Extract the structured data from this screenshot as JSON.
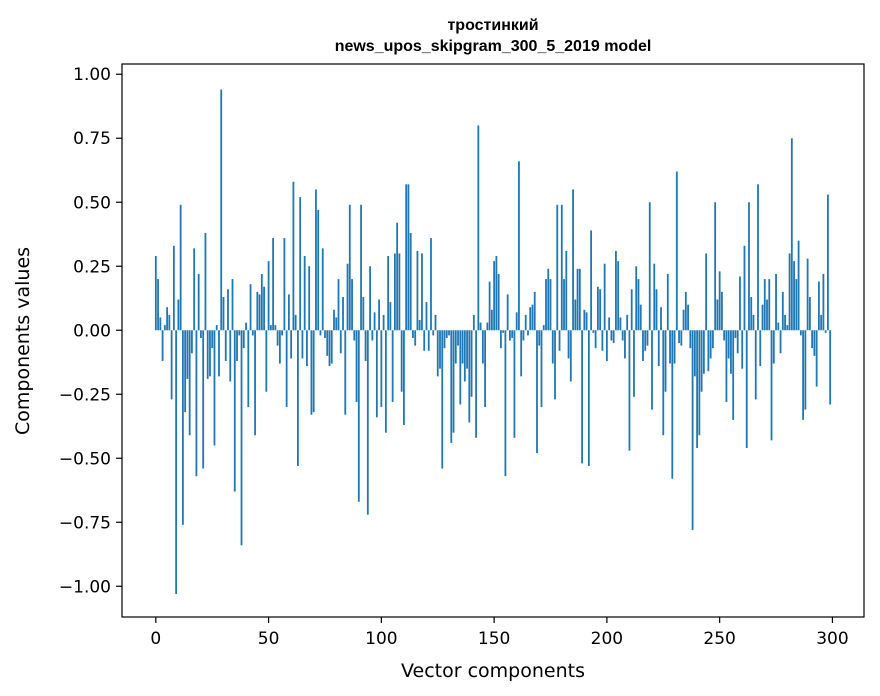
{
  "chart_data": {
    "type": "bar",
    "title": [
      "тростинкий",
      "news_upos_skipgram_300_5_2019 model"
    ],
    "xlabel": "Vector components",
    "ylabel": "Components values",
    "xlim": [
      -15,
      314
    ],
    "ylim": [
      -1.12,
      1.04
    ],
    "xticks": [
      0,
      50,
      100,
      150,
      200,
      250,
      300
    ],
    "xtick_labels": [
      "0",
      "50",
      "100",
      "150",
      "200",
      "250",
      "300"
    ],
    "yticks": [
      -1.0,
      -0.75,
      -0.5,
      -0.25,
      0.0,
      0.25,
      0.5,
      0.75,
      1.0
    ],
    "ytick_labels": [
      "−1.00",
      "−0.75",
      "−0.50",
      "−0.25",
      "0.00",
      "0.25",
      "0.50",
      "0.75",
      "1.00"
    ],
    "grid": false,
    "bar_color": "#1f77b4",
    "x": "component index 0..299",
    "values": [
      0.29,
      0.2,
      0.05,
      -0.12,
      0.02,
      0.09,
      0.06,
      -0.27,
      0.33,
      -1.03,
      0.12,
      0.49,
      -0.76,
      -0.32,
      -0.19,
      -0.41,
      -0.09,
      0.32,
      -0.57,
      0.22,
      -0.03,
      -0.54,
      0.38,
      -0.19,
      -0.18,
      -0.07,
      -0.45,
      0.02,
      -0.18,
      0.94,
      0.13,
      -0.12,
      0.16,
      -0.2,
      0.2,
      -0.63,
      -0.12,
      -0.02,
      -0.84,
      -0.07,
      0.03,
      -0.3,
      0.18,
      -0.02,
      -0.41,
      0.15,
      0.14,
      0.22,
      0.17,
      -0.24,
      0.27,
      0.02,
      0.36,
      0.02,
      -0.06,
      -0.13,
      -0.02,
      0.36,
      -0.3,
      0.14,
      -0.11,
      0.58,
      0.06,
      -0.53,
      0.52,
      -0.11,
      0.29,
      -0.14,
      0.25,
      -0.33,
      -0.32,
      0.55,
      0.47,
      -0.02,
      0.32,
      -0.03,
      -0.1,
      -0.14,
      -0.13,
      0.08,
      0.05,
      0.2,
      -0.09,
      0.13,
      -0.33,
      0.26,
      0.49,
      0.2,
      -0.04,
      -0.28,
      -0.67,
      0.49,
      0.13,
      -0.12,
      -0.72,
      0.25,
      -0.04,
      0.07,
      -0.34,
      0.12,
      -0.3,
      0.06,
      -0.4,
      0.29,
      0.11,
      -0.28,
      0.3,
      0.42,
      0.3,
      -0.24,
      -0.37,
      0.57,
      0.57,
      0.38,
      -0.03,
      -0.06,
      0.31,
      0.04,
      0.3,
      -0.08,
      0.11,
      -0.08,
      0.36,
      -0.02,
      0.06,
      -0.18,
      -0.15,
      -0.54,
      -0.07,
      -0.03,
      -0.02,
      -0.44,
      -0.4,
      -0.13,
      -0.06,
      -0.29,
      -0.13,
      -0.2,
      -0.15,
      -0.36,
      -0.26,
      0.06,
      -0.42,
      0.8,
      0.03,
      -0.13,
      -0.3,
      0.03,
      0.19,
      0.08,
      0.27,
      0.29,
      0.22,
      -0.07,
      -0.01,
      -0.57,
      0.14,
      -0.04,
      -0.03,
      -0.42,
      0.07,
      0.66,
      -0.18,
      -0.04,
      0.06,
      -0.02,
      0.09,
      0.1,
      0.15,
      -0.48,
      -0.06,
      -0.3,
      0.02,
      0.2,
      0.24,
      0.2,
      -0.13,
      -0.27,
      0.49,
      -0.08,
      0.49,
      0.2,
      0.31,
      -0.11,
      -0.2,
      0.55,
      0.12,
      0.24,
      0.24,
      -0.52,
      0.08,
      0.07,
      -0.53,
      0.39,
      -0.01,
      -0.07,
      0.17,
      0.16,
      -0.08,
      0.26,
      -0.12,
      0.05,
      -0.04,
      -0.05,
      0.31,
      0.27,
      0.05,
      -0.04,
      -0.11,
      0.06,
      -0.47,
      0.16,
      -0.26,
      0.25,
      0.2,
      0.1,
      -0.12,
      -0.08,
      -0.06,
      0.5,
      -0.31,
      0.26,
      0.16,
      -0.14,
      0.09,
      -0.41,
      -0.24,
      0.22,
      -0.13,
      -0.58,
      -0.13,
      0.62,
      -0.05,
      -0.06,
      0.08,
      0.15,
      0.1,
      -0.07,
      -0.78,
      -0.18,
      -0.46,
      -0.41,
      -0.24,
      -0.17,
      0.3,
      -0.16,
      -0.11,
      -0.07,
      0.5,
      0.12,
      0.23,
      0.15,
      -0.04,
      -0.28,
      -0.11,
      -0.17,
      -0.35,
      -0.03,
      -0.09,
      0.21,
      -0.15,
      0.33,
      -0.46,
      0.5,
      0.13,
      0.06,
      -0.27,
      0.57,
      -0.14,
      0.1,
      0.2,
      0.12,
      0.2,
      -0.43,
      -0.13,
      0.22,
      0.03,
      -0.09,
      0.15,
      0.06,
      0.02,
      0.3,
      0.75,
      0.27,
      0.2,
      0.35,
      -0.02,
      -0.35,
      -0.31,
      0.28,
      0.13,
      -0.07,
      -0.1,
      -0.22,
      0.19,
      0.06,
      0.22,
      -0.01,
      0.53,
      -0.29
    ]
  }
}
